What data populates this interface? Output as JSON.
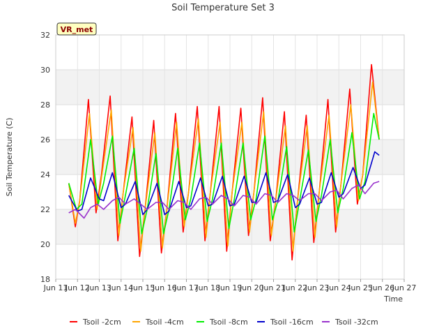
{
  "chart_data": {
    "type": "line",
    "title": "Soil Temperature Set 3",
    "xlabel": "Time",
    "ylabel": "Soil Temperature (C)",
    "site_label": "VR_met",
    "ylim": [
      18,
      32
    ],
    "y_ticks": [
      18,
      20,
      22,
      24,
      26,
      28,
      30,
      32
    ],
    "xlim": [
      11,
      27
    ],
    "x_ticks": [
      11,
      12,
      13,
      14,
      15,
      16,
      17,
      18,
      19,
      20,
      21,
      22,
      23,
      24,
      25,
      26,
      27
    ],
    "x_tick_labels": [
      "Jun 11",
      "Jun 12",
      "Jun 13",
      "Jun 14",
      "Jun 15",
      "Jun 16",
      "Jun 17",
      "Jun 18",
      "Jun 19",
      "Jun 20",
      "Jun 21",
      "Jun 22",
      "Jun 23",
      "Jun 24",
      "Jun 25",
      "Jun 26",
      "Jun 27"
    ],
    "grid": true,
    "legend_position": "bottom",
    "series": [
      {
        "name": "Tsoil -2cm",
        "color": "#ff0000",
        "x": [
          11.6,
          11.9,
          12.1,
          12.5,
          12.85,
          13.1,
          13.5,
          13.85,
          14.1,
          14.5,
          14.85,
          15.1,
          15.5,
          15.85,
          16.1,
          16.5,
          16.85,
          17.1,
          17.5,
          17.85,
          18.1,
          18.5,
          18.85,
          19.1,
          19.5,
          19.85,
          20.1,
          20.5,
          20.85,
          21.1,
          21.5,
          21.85,
          22.1,
          22.5,
          22.85,
          23.1,
          23.5,
          23.85,
          24.1,
          24.5,
          24.85,
          25.1,
          25.5,
          25.85
        ],
        "y": [
          23.5,
          21.0,
          22.5,
          28.3,
          21.8,
          24.0,
          28.5,
          20.2,
          23.0,
          27.3,
          19.3,
          22.0,
          27.1,
          19.5,
          22.0,
          27.5,
          20.7,
          23.0,
          27.9,
          20.2,
          23.0,
          27.9,
          19.6,
          23.0,
          27.8,
          20.5,
          23.0,
          28.4,
          20.2,
          22.5,
          27.6,
          19.1,
          22.5,
          27.4,
          20.1,
          23.0,
          28.3,
          20.7,
          23.5,
          28.9,
          22.3,
          24.0,
          30.3,
          26.0
        ]
      },
      {
        "name": "Tsoil -4cm",
        "color": "#ffa500",
        "x": [
          11.6,
          11.9,
          12.1,
          12.55,
          12.9,
          13.1,
          13.55,
          13.9,
          14.1,
          14.55,
          14.9,
          15.1,
          15.55,
          15.9,
          16.1,
          16.55,
          16.9,
          17.1,
          17.55,
          17.9,
          18.1,
          18.55,
          18.9,
          19.1,
          19.55,
          19.9,
          20.1,
          20.55,
          20.9,
          21.1,
          21.55,
          21.9,
          22.1,
          22.55,
          22.9,
          23.1,
          23.55,
          23.9,
          24.1,
          24.55,
          24.9,
          25.1,
          25.55,
          25.85
        ],
        "y": [
          23.5,
          21.2,
          22.5,
          27.5,
          22.0,
          23.8,
          27.7,
          20.5,
          23.0,
          26.7,
          19.6,
          22.0,
          26.4,
          19.8,
          22.0,
          27.0,
          21.0,
          23.0,
          27.2,
          20.4,
          23.0,
          27.0,
          19.9,
          23.0,
          27.0,
          20.7,
          23.0,
          27.6,
          20.5,
          22.5,
          26.8,
          19.6,
          22.5,
          26.8,
          20.4,
          23.0,
          27.4,
          21.0,
          23.5,
          28.0,
          22.5,
          24.0,
          29.3,
          26.0
        ]
      },
      {
        "name": "Tsoil -8cm",
        "color": "#00ee00",
        "x": [
          11.6,
          11.95,
          12.2,
          12.6,
          12.95,
          13.2,
          13.6,
          13.95,
          14.2,
          14.6,
          14.95,
          15.2,
          15.6,
          15.95,
          16.2,
          16.6,
          16.95,
          17.2,
          17.6,
          17.95,
          18.2,
          18.6,
          18.95,
          19.2,
          19.6,
          19.95,
          20.2,
          20.6,
          20.95,
          21.2,
          21.6,
          21.95,
          22.2,
          22.6,
          22.95,
          23.2,
          23.6,
          23.95,
          24.2,
          24.6,
          24.95,
          25.2,
          25.6,
          25.85
        ],
        "y": [
          23.5,
          22.0,
          22.3,
          26.0,
          22.3,
          23.5,
          26.2,
          21.2,
          22.8,
          25.5,
          20.6,
          22.0,
          25.2,
          20.6,
          22.0,
          25.5,
          21.4,
          22.6,
          25.8,
          21.3,
          22.6,
          25.8,
          20.9,
          22.6,
          25.8,
          21.4,
          22.6,
          26.2,
          21.4,
          22.5,
          25.6,
          20.7,
          22.5,
          25.4,
          21.3,
          22.8,
          26.0,
          21.8,
          23.2,
          26.4,
          22.6,
          23.6,
          27.5,
          26.0
        ]
      },
      {
        "name": "Tsoil -16cm",
        "color": "#0000cc",
        "x": [
          11.6,
          12.0,
          12.2,
          12.6,
          13.0,
          13.2,
          13.6,
          14.0,
          14.2,
          14.65,
          15.0,
          15.2,
          15.65,
          16.0,
          16.2,
          16.65,
          17.0,
          17.2,
          17.65,
          18.0,
          18.2,
          18.65,
          19.0,
          19.2,
          19.65,
          20.0,
          20.2,
          20.65,
          21.0,
          21.2,
          21.65,
          22.0,
          22.2,
          22.65,
          23.0,
          23.2,
          23.65,
          24.0,
          24.2,
          24.65,
          25.0,
          25.2,
          25.65,
          25.85
        ],
        "y": [
          22.8,
          21.9,
          22.0,
          23.8,
          22.6,
          22.5,
          24.1,
          22.1,
          22.3,
          23.6,
          21.7,
          22.0,
          23.5,
          21.7,
          21.9,
          23.6,
          22.1,
          22.2,
          23.8,
          22.2,
          22.3,
          23.9,
          22.2,
          22.3,
          23.9,
          22.4,
          22.4,
          24.1,
          22.4,
          22.5,
          24.0,
          22.1,
          22.3,
          23.8,
          22.3,
          22.4,
          24.1,
          22.7,
          22.9,
          24.4,
          23.2,
          23.4,
          25.3,
          25.1
        ]
      },
      {
        "name": "Tsoil -32cm",
        "color": "#9932cc",
        "x": [
          11.6,
          11.9,
          12.3,
          12.6,
          12.9,
          13.2,
          13.6,
          13.9,
          14.2,
          14.6,
          14.9,
          15.2,
          15.6,
          15.9,
          16.2,
          16.6,
          16.9,
          17.2,
          17.6,
          17.9,
          18.2,
          18.6,
          18.9,
          19.2,
          19.6,
          19.9,
          20.2,
          20.6,
          20.9,
          21.2,
          21.6,
          21.9,
          22.2,
          22.6,
          22.9,
          23.2,
          23.6,
          23.9,
          24.2,
          24.6,
          24.9,
          25.2,
          25.6,
          25.85
        ],
        "y": [
          21.8,
          22.0,
          21.5,
          22.1,
          22.3,
          22.0,
          22.5,
          22.7,
          22.3,
          22.6,
          22.3,
          22.0,
          22.4,
          22.4,
          22.0,
          22.5,
          22.4,
          22.0,
          22.6,
          22.7,
          22.3,
          22.8,
          22.6,
          22.2,
          22.8,
          22.7,
          22.3,
          22.9,
          22.8,
          22.4,
          22.9,
          22.8,
          22.5,
          22.9,
          22.9,
          22.5,
          23.0,
          23.1,
          22.6,
          23.2,
          23.4,
          22.9,
          23.5,
          23.6
        ]
      }
    ]
  }
}
